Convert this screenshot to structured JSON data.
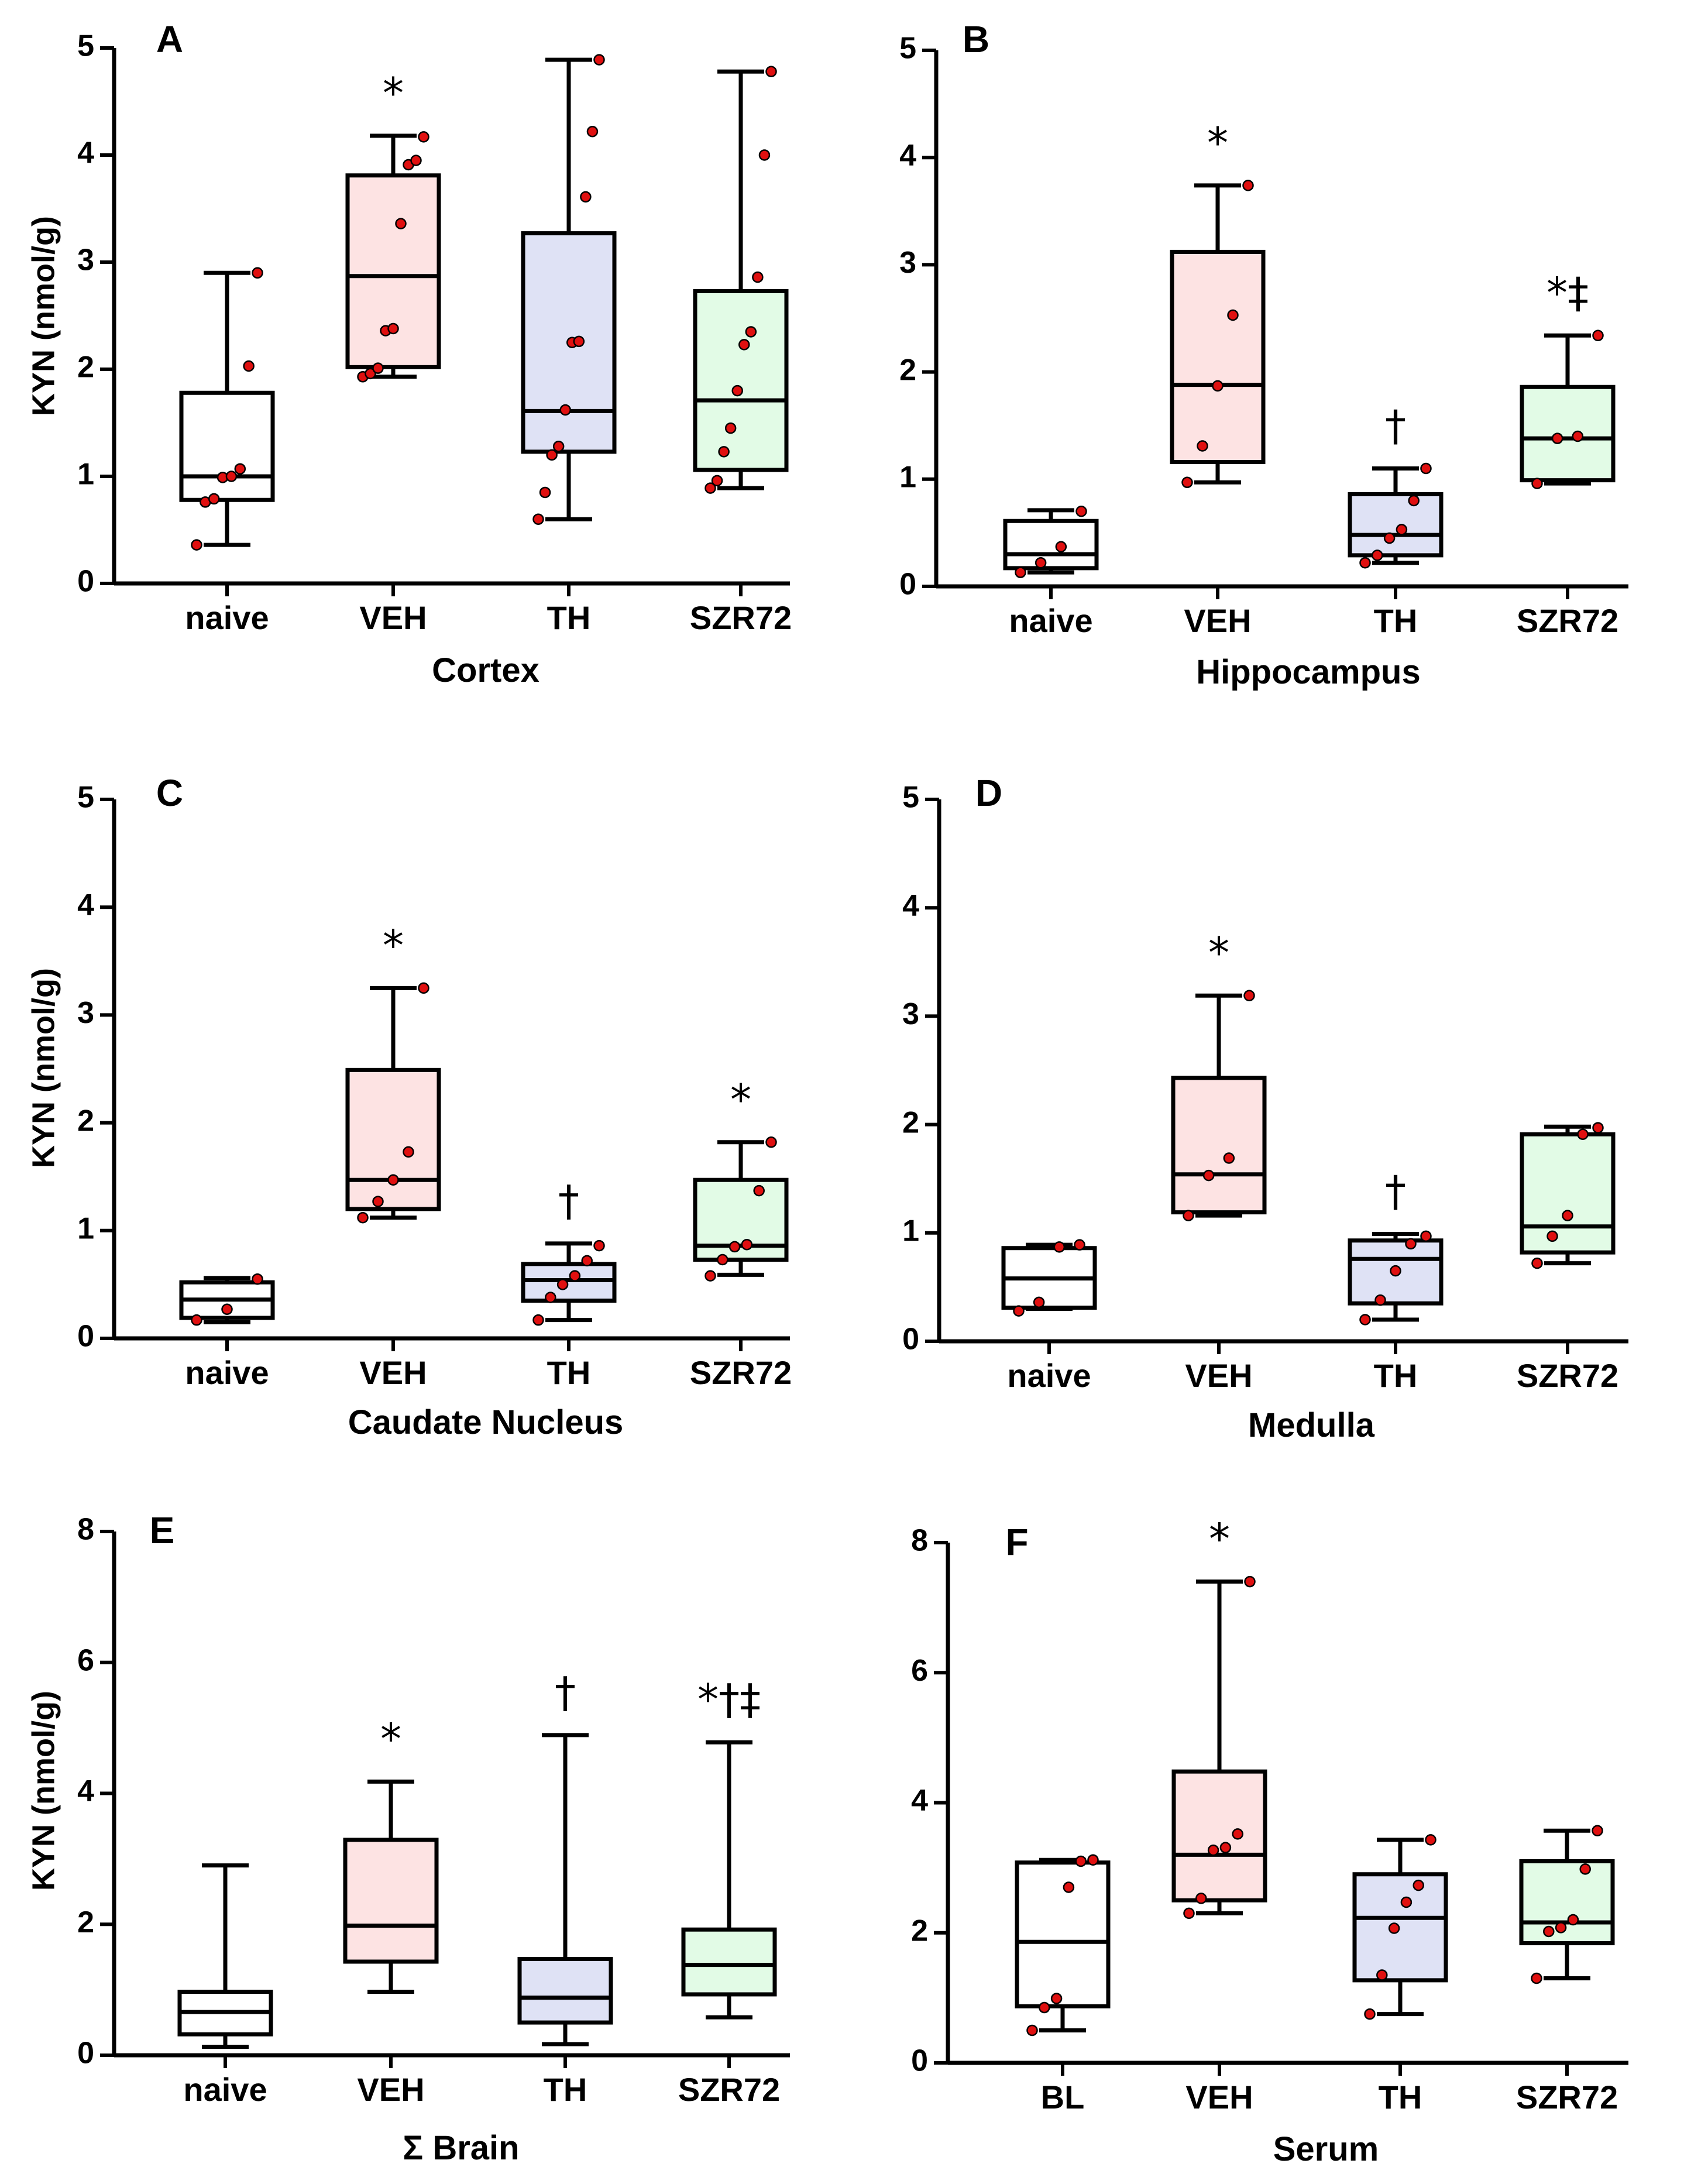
{
  "figure": {
    "y_axis_label": "KYN (nmol/g)"
  },
  "colors": {
    "naive": "#ffffff",
    "VEH": "#fde3e3",
    "TH": "#dfe2f5",
    "SZR72": "#e2fbe6",
    "point": "#e01010",
    "ink": "#000000"
  },
  "chart_data": [
    {
      "panel": "A",
      "title": "Cortex",
      "type": "box",
      "ylim": [
        0,
        5
      ],
      "yticks": [
        0,
        1,
        2,
        3,
        4,
        5
      ],
      "groups": [
        {
          "name": "naive",
          "color_key": "naive",
          "min": 0.36,
          "q1": 0.78,
          "median": 1.0,
          "q3": 1.78,
          "max": 2.9,
          "points": [
            0.36,
            0.76,
            0.79,
            0.99,
            1.0,
            1.07,
            2.03,
            2.9
          ],
          "annotation": ""
        },
        {
          "name": "VEH",
          "color_key": "VEH",
          "min": 1.93,
          "q1": 2.02,
          "median": 2.87,
          "q3": 3.81,
          "max": 4.18,
          "points": [
            1.93,
            1.96,
            2.01,
            2.36,
            2.38,
            3.36,
            3.91,
            3.95,
            4.17
          ],
          "annotation": "*"
        },
        {
          "name": "TH",
          "color_key": "TH",
          "min": 0.6,
          "q1": 1.23,
          "median": 1.61,
          "q3": 3.27,
          "max": 4.89,
          "points": [
            0.6,
            0.85,
            1.2,
            1.28,
            1.62,
            2.25,
            2.26,
            3.61,
            4.22,
            4.89
          ],
          "annotation": ""
        },
        {
          "name": "SZR72",
          "color_key": "SZR72",
          "min": 0.89,
          "q1": 1.06,
          "median": 1.71,
          "q3": 2.73,
          "max": 4.78,
          "points": [
            0.89,
            0.96,
            1.23,
            1.45,
            1.8,
            2.23,
            2.35,
            2.86,
            4.0,
            4.78
          ],
          "annotation": ""
        }
      ]
    },
    {
      "panel": "B",
      "title": "Hippocampus",
      "type": "box",
      "ylim": [
        0,
        5
      ],
      "yticks": [
        0,
        1,
        2,
        3,
        4,
        5
      ],
      "groups": [
        {
          "name": "naive",
          "color_key": "naive",
          "min": 0.13,
          "q1": 0.17,
          "median": 0.3,
          "q3": 0.61,
          "max": 0.71,
          "points": [
            0.13,
            0.22,
            0.37,
            0.7
          ],
          "annotation": ""
        },
        {
          "name": "VEH",
          "color_key": "VEH",
          "min": 0.97,
          "q1": 1.16,
          "median": 1.88,
          "q3": 3.12,
          "max": 3.74,
          "points": [
            0.97,
            1.31,
            1.87,
            2.53,
            3.74
          ],
          "annotation": "*"
        },
        {
          "name": "TH",
          "color_key": "TH",
          "min": 0.22,
          "q1": 0.29,
          "median": 0.48,
          "q3": 0.86,
          "max": 1.1,
          "points": [
            0.22,
            0.29,
            0.45,
            0.53,
            0.8,
            1.1
          ],
          "annotation": "†"
        },
        {
          "name": "SZR72",
          "color_key": "SZR72",
          "min": 0.96,
          "q1": 0.99,
          "median": 1.38,
          "q3": 1.86,
          "max": 2.34,
          "points": [
            0.96,
            1.38,
            1.4,
            2.34
          ],
          "annotation": "*‡"
        }
      ]
    },
    {
      "panel": "C",
      "title": "Caudate Nucleus",
      "type": "box",
      "ylim": [
        0,
        5
      ],
      "yticks": [
        0,
        1,
        2,
        3,
        4,
        5
      ],
      "groups": [
        {
          "name": "naive",
          "color_key": "naive",
          "min": 0.15,
          "q1": 0.19,
          "median": 0.36,
          "q3": 0.52,
          "max": 0.56,
          "points": [
            0.17,
            0.27,
            0.55
          ],
          "annotation": ""
        },
        {
          "name": "VEH",
          "color_key": "VEH",
          "min": 1.12,
          "q1": 1.2,
          "median": 1.47,
          "q3": 2.49,
          "max": 3.25,
          "points": [
            1.12,
            1.27,
            1.47,
            1.73,
            3.25
          ],
          "annotation": "*"
        },
        {
          "name": "TH",
          "color_key": "TH",
          "min": 0.17,
          "q1": 0.35,
          "median": 0.54,
          "q3": 0.69,
          "max": 0.88,
          "points": [
            0.17,
            0.38,
            0.5,
            0.58,
            0.72,
            0.86
          ],
          "annotation": "†"
        },
        {
          "name": "SZR72",
          "color_key": "SZR72",
          "min": 0.59,
          "q1": 0.73,
          "median": 0.86,
          "q3": 1.47,
          "max": 1.82,
          "points": [
            0.58,
            0.73,
            0.85,
            0.87,
            1.37,
            1.82
          ],
          "annotation": "*"
        }
      ]
    },
    {
      "panel": "D",
      "title": "Medulla",
      "type": "box",
      "ylim": [
        0,
        5
      ],
      "yticks": [
        0,
        1,
        2,
        3,
        4,
        5
      ],
      "groups": [
        {
          "name": "naive",
          "color_key": "naive",
          "min": 0.3,
          "q1": 0.31,
          "median": 0.58,
          "q3": 0.86,
          "max": 0.89,
          "points": [
            0.28,
            0.36,
            0.87,
            0.89
          ],
          "annotation": ""
        },
        {
          "name": "VEH",
          "color_key": "VEH",
          "min": 1.16,
          "q1": 1.19,
          "median": 1.54,
          "q3": 2.43,
          "max": 3.19,
          "points": [
            1.16,
            1.53,
            1.69,
            3.19
          ],
          "annotation": "*"
        },
        {
          "name": "TH",
          "color_key": "TH",
          "min": 0.2,
          "q1": 0.35,
          "median": 0.76,
          "q3": 0.93,
          "max": 0.99,
          "points": [
            0.2,
            0.38,
            0.65,
            0.9,
            0.97
          ],
          "annotation": "†"
        },
        {
          "name": "SZR72",
          "color_key": "SZR72",
          "min": 0.72,
          "q1": 0.82,
          "median": 1.06,
          "q3": 1.91,
          "max": 1.98,
          "points": [
            0.72,
            0.97,
            1.16,
            1.91,
            1.97
          ],
          "annotation": ""
        }
      ]
    },
    {
      "panel": "E",
      "title": "Σ Brain",
      "type": "box",
      "ylim": [
        0,
        8
      ],
      "yticks": [
        0,
        2,
        4,
        6,
        8
      ],
      "groups": [
        {
          "name": "naive",
          "color_key": "naive",
          "min": 0.13,
          "q1": 0.32,
          "median": 0.66,
          "q3": 0.97,
          "max": 2.9,
          "points": [],
          "annotation": ""
        },
        {
          "name": "VEH",
          "color_key": "VEH",
          "min": 0.97,
          "q1": 1.43,
          "median": 1.98,
          "q3": 3.29,
          "max": 4.18,
          "points": [],
          "annotation": "*"
        },
        {
          "name": "TH",
          "color_key": "TH",
          "min": 0.17,
          "q1": 0.5,
          "median": 0.88,
          "q3": 1.47,
          "max": 4.89,
          "points": [],
          "annotation": "†"
        },
        {
          "name": "SZR72",
          "color_key": "SZR72",
          "min": 0.58,
          "q1": 0.93,
          "median": 1.38,
          "q3": 1.92,
          "max": 4.78,
          "points": [],
          "annotation": "*†‡"
        }
      ]
    },
    {
      "panel": "F",
      "title": "Serum",
      "type": "box",
      "ylim": [
        0,
        8
      ],
      "yticks": [
        0,
        2,
        4,
        6,
        8
      ],
      "groups": [
        {
          "name": "BL",
          "color_key": "naive",
          "min": 0.5,
          "q1": 0.87,
          "median": 1.86,
          "q3": 3.08,
          "max": 3.12,
          "points": [
            0.5,
            0.85,
            0.99,
            2.7,
            3.1,
            3.12
          ],
          "annotation": ""
        },
        {
          "name": "VEH",
          "color_key": "VEH",
          "min": 2.3,
          "q1": 2.5,
          "median": 3.2,
          "q3": 4.48,
          "max": 7.4,
          "points": [
            2.3,
            2.53,
            3.27,
            3.31,
            3.52,
            7.4
          ],
          "annotation": "*"
        },
        {
          "name": "TH",
          "color_key": "TH",
          "min": 0.75,
          "q1": 1.27,
          "median": 2.23,
          "q3": 2.9,
          "max": 3.43,
          "points": [
            0.75,
            1.35,
            2.07,
            2.47,
            2.73,
            3.43
          ],
          "annotation": ""
        },
        {
          "name": "SZR72",
          "color_key": "SZR72",
          "min": 1.3,
          "q1": 1.84,
          "median": 2.16,
          "q3": 3.1,
          "max": 3.57,
          "points": [
            1.3,
            2.02,
            2.08,
            2.2,
            2.98,
            3.57
          ],
          "annotation": ""
        }
      ]
    }
  ]
}
